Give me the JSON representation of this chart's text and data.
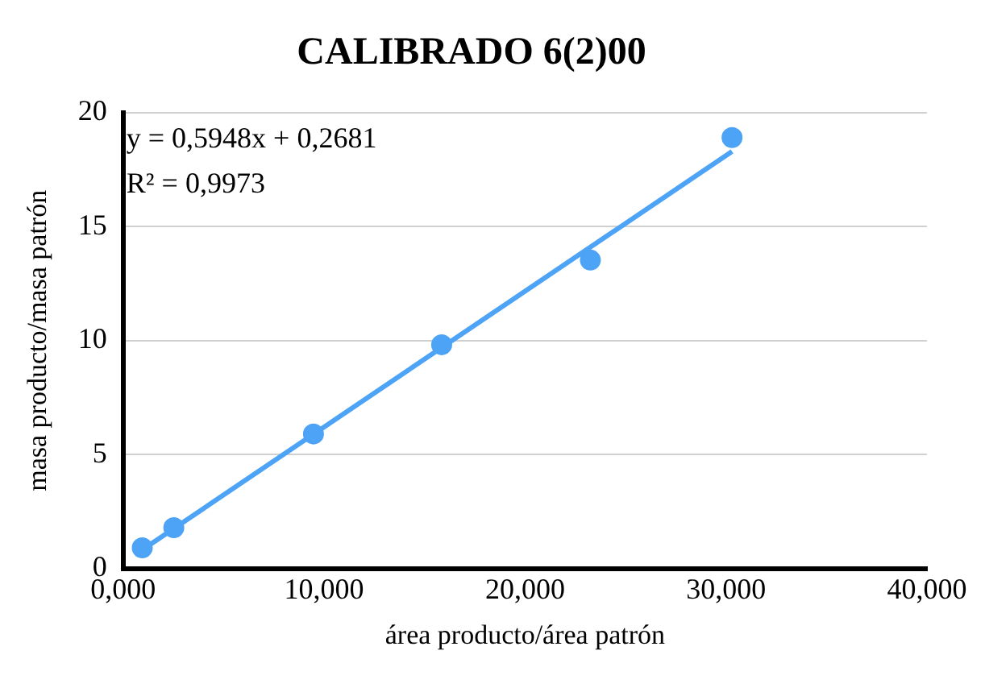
{
  "chart_data": {
    "type": "scatter",
    "title": "CALIBRADO 6(2)00",
    "xlabel": "área producto/área patrón",
    "ylabel": "masa producto/masa patrón",
    "annotations": [
      "y = 0,5948x + 0,2681",
      "R² = 0,9973"
    ],
    "series": [
      {
        "marker": "circle",
        "color": "#4da3f5",
        "x": [
          0.95,
          2.52,
          9.47,
          15.85,
          23.25,
          30.3
        ],
        "values": [
          0.92,
          1.8,
          5.91,
          9.82,
          13.53,
          18.9
        ]
      },
      {
        "type": "line",
        "marker": "none",
        "color": "#4da3f5",
        "x": [
          0.95,
          30.3
        ],
        "values": [
          0.83,
          18.29
        ]
      }
    ],
    "xlim": [
      0,
      40
    ],
    "xticks": [
      {
        "value": 0,
        "label": "0,000"
      },
      {
        "value": 10,
        "label": "10,000"
      },
      {
        "value": 20,
        "label": "20,000"
      },
      {
        "value": 30,
        "label": "30,000"
      },
      {
        "value": 40,
        "label": "40,000"
      }
    ],
    "ylim": [
      0,
      20
    ],
    "yticks": [
      0,
      5,
      10,
      15,
      20
    ],
    "grid": "y",
    "line_style": "solid"
  }
}
